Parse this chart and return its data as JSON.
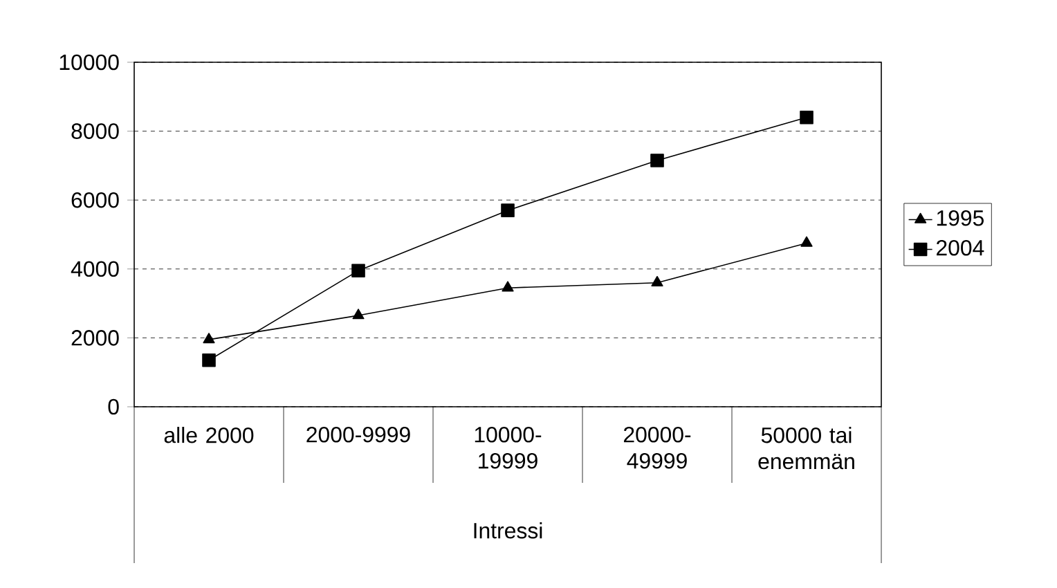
{
  "chart_data": {
    "type": "line",
    "xlabel": "Intressi",
    "categories": [
      "alle 2000",
      "2000-9999",
      "10000-19999",
      "20000-49999",
      "50000 tai enemmän"
    ],
    "series": [
      {
        "name": "1995",
        "color": "#000000",
        "marker": "triangle",
        "values": [
          1950,
          2650,
          3450,
          3600,
          4750
        ]
      },
      {
        "name": "2004",
        "color": "#000000",
        "marker": "square",
        "values": [
          1350,
          3950,
          5700,
          7150,
          8400
        ]
      }
    ],
    "ylim": [
      0,
      10000
    ],
    "yticks": [
      0,
      2000,
      4000,
      6000,
      8000,
      10000
    ],
    "grid": "y",
    "legend": "right",
    "line_style": "solid"
  }
}
